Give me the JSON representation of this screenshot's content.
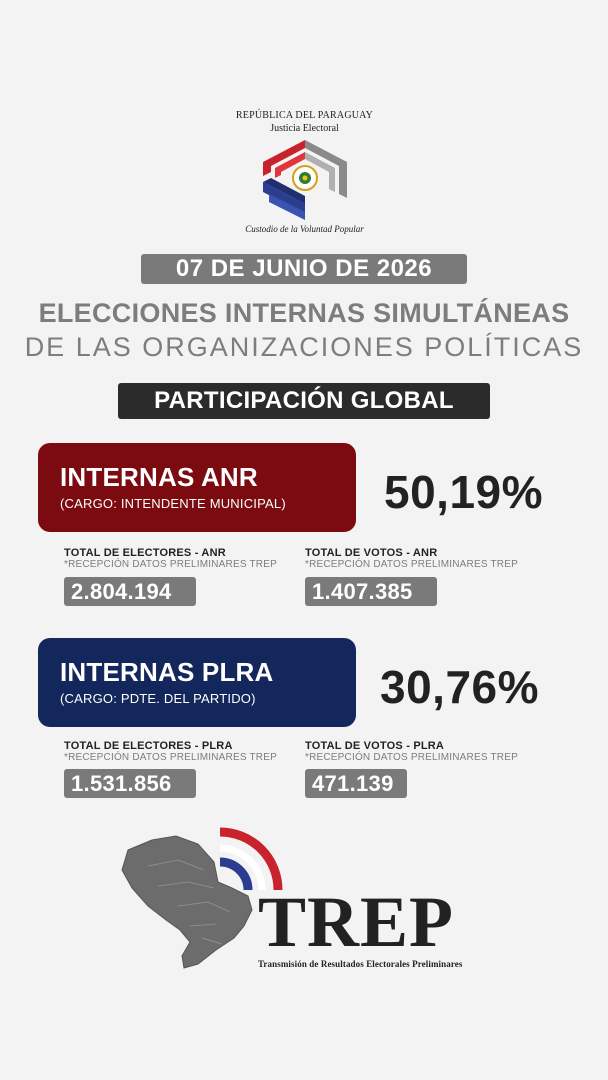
{
  "header": {
    "republic": "REPÚBLICA DEL PARAGUAY",
    "institution": "Justicia Electoral",
    "motto": "Custodio de la Voluntad Popular"
  },
  "date": "07 DE JUNIO DE 2026",
  "title": {
    "line1": "ELECCIONES INTERNAS SIMULTÁNEAS",
    "line2": "DE LAS ORGANIZACIONES POLÍTICAS"
  },
  "participation_label": "PARTICIPACIÓN GLOBAL",
  "parties": {
    "anr": {
      "name": "INTERNAS ANR",
      "cargo": "(CARGO: INTENDENTE MUNICIPAL)",
      "percent": "50,19%",
      "color": "#7b0b10",
      "electors_label": "TOTAL DE ELECTORES - ANR",
      "electors_note": "*RECEPCIÓN DATOS PRELIMINARES TREP",
      "electors_value": "2.804.194",
      "votes_label": "TOTAL DE VOTOS - ANR",
      "votes_note": "*RECEPCIÓN DATOS PRELIMINARES TREP",
      "votes_value": "1.407.385"
    },
    "plra": {
      "name": "INTERNAS PLRA",
      "cargo": "(CARGO: PDTE. DEL PARTIDO)",
      "percent": "30,76%",
      "color": "#14275c",
      "electors_label": "TOTAL DE ELECTORES - PLRA",
      "electors_note": "*RECEPCIÓN DATOS PRELIMINARES TREP",
      "electors_value": "1.531.856",
      "votes_label": "TOTAL DE VOTOS - PLRA",
      "votes_note": "*RECEPCIÓN DATOS PRELIMINARES TREP",
      "votes_value": "471.139"
    }
  },
  "trep": {
    "name": "TREP",
    "subtitle": "Transmisión de Resultados Electorales Preliminares"
  }
}
